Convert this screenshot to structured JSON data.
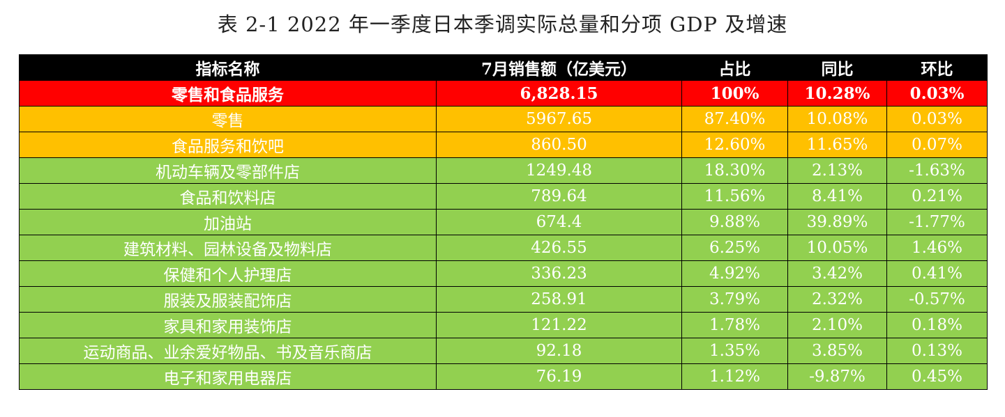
{
  "caption": "表 2-1 2022 年一季度日本季调实际总量和分项 GDP 及增速",
  "headers": [
    "指标名称",
    "7月销售额（亿美元）",
    "占比",
    "同比",
    "环比"
  ],
  "rows": [
    {
      "kind": "total",
      "name": "零售和食品服务",
      "sales": "6,828.15",
      "share": "100%",
      "yoy": "10.28%",
      "mom": "0.03%"
    },
    {
      "kind": "sub",
      "name": "零售",
      "sales": "5967.65",
      "share": "87.40%",
      "yoy": "10.08%",
      "mom": "0.03%"
    },
    {
      "kind": "sub",
      "name": "食品服务和饮吧",
      "sales": "860.50",
      "share": "12.60%",
      "yoy": "11.65%",
      "mom": "0.07%"
    },
    {
      "kind": "item",
      "name": "机动车辆及零部件店",
      "sales": "1249.48",
      "share": "18.30%",
      "yoy": "2.13%",
      "mom": "-1.63%"
    },
    {
      "kind": "item",
      "name": "食品和饮料店",
      "sales": "789.64",
      "share": "11.56%",
      "yoy": "8.41%",
      "mom": "0.21%"
    },
    {
      "kind": "item",
      "name": "加油站",
      "sales": "674.4",
      "share": "9.88%",
      "yoy": "39.89%",
      "mom": "-1.77%"
    },
    {
      "kind": "item",
      "name": "建筑材料、园林设备及物料店",
      "sales": "426.55",
      "share": "6.25%",
      "yoy": "10.05%",
      "mom": "1.46%"
    },
    {
      "kind": "item",
      "name": "保健和个人护理店",
      "sales": "336.23",
      "share": "4.92%",
      "yoy": "3.42%",
      "mom": "0.41%"
    },
    {
      "kind": "item",
      "name": "服装及服装配饰店",
      "sales": "258.91",
      "share": "3.79%",
      "yoy": "2.32%",
      "mom": "-0.57%"
    },
    {
      "kind": "item",
      "name": "家具和家用装饰店",
      "sales": "121.22",
      "share": "1.78%",
      "yoy": "2.10%",
      "mom": "0.18%"
    },
    {
      "kind": "item",
      "name": "运动商品、业余爱好物品、书及音乐商店",
      "sales": "92.18",
      "share": "1.35%",
      "yoy": "3.85%",
      "mom": "0.13%"
    },
    {
      "kind": "item",
      "name": "电子和家用电器店",
      "sales": "76.19",
      "share": "1.12%",
      "yoy": "-9.87%",
      "mom": "0.45%"
    }
  ],
  "colors": {
    "header": "#000000",
    "total": "#ff0000",
    "sub": "#ffc000",
    "item": "#92d050"
  }
}
